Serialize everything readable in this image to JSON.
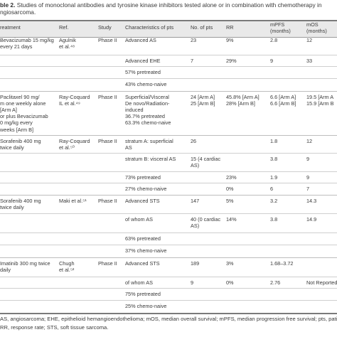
{
  "caption": {
    "label": "ble 2.",
    "text_line1": "Studies of monoclonal antibodies and tyrosine kinase inhibitors tested alone or in combination with chemotherapy in",
    "text_line2": "ngiosarcoma."
  },
  "columns": [
    "reatment",
    "Ref.",
    "Study",
    "Characteristics of pts",
    "No. of pts",
    "RR",
    "mPFS\n(months)",
    "mOS\n(months)"
  ],
  "rows": [
    {
      "treatment": "Bevacizumab 15 mg/kg\nevery 21 days",
      "ref": "Agulnik\net al.⁴⁸",
      "study": "Phase II",
      "characteristics": "Advanced AS",
      "n": "23",
      "rr": "9%",
      "mpfs": "2.8",
      "mos": "12"
    },
    {
      "treatment": "",
      "ref": "",
      "study": "",
      "characteristics": "Advanced EHE",
      "n": "7",
      "rr": "29%",
      "mpfs": "9",
      "mos": "33"
    },
    {
      "treatment": "",
      "ref": "",
      "study": "",
      "characteristics": "57% pretreated",
      "n": "",
      "rr": "",
      "mpfs": "",
      "mos": ""
    },
    {
      "treatment": "",
      "ref": "",
      "study": "",
      "characteristics": "43% chemo-naive",
      "n": "",
      "rr": "",
      "mpfs": "",
      "mos": ""
    },
    {
      "treatment": "Paclitaxel 90 mg/\nm one weekly alone\n[Arm A]\nor plus Bevacizumab\n0 mg/kg every\nweeks [Arm B]",
      "ref": "Ray-Coquard\nIL et al.⁴⁹",
      "study": "Phase II",
      "characteristics": "Superficial/Visceral\nDe novo/Radiation-\ninduced\n36.7% pretreated\n63.3% chemo-naive",
      "n": "24 [Arm A]\n25 [Arm B]",
      "rr": "45.8% [Arm A]\n28% [Arm B]",
      "mpfs": "6.6 [Arm A]\n6.6 [Arm B]",
      "mos": "19.5 [Arm A\n15.9 [Arm B"
    },
    {
      "treatment": "Sorafenib 400 mg\ntwice daily",
      "ref": "Ray-Coquard\net al.⁵⁰",
      "study": "Phase II",
      "characteristics": "stratum A: superficial\nAS",
      "n": "26",
      "rr": "",
      "mpfs": "1.8",
      "mos": "12"
    },
    {
      "treatment": "",
      "ref": "",
      "study": "",
      "characteristics": "stratum B: visceral AS",
      "n": "15 (4 cardiac\nAS)",
      "rr": "",
      "mpfs": "3.8",
      "mos": "9"
    },
    {
      "treatment": "",
      "ref": "",
      "study": "",
      "characteristics": "73% pretreated",
      "n": "",
      "rr": "23%",
      "mpfs": "1.9",
      "mos": "9"
    },
    {
      "treatment": "",
      "ref": "",
      "study": "",
      "characteristics": "27% chemo-naive",
      "n": "",
      "rr": "0%",
      "mpfs": "6",
      "mos": "7"
    },
    {
      "treatment": "Sorafenib 400 mg\ntwice daily",
      "ref": "Maki et al.⁵¹",
      "study": "Phase II",
      "characteristics": "Advanced STS",
      "n": "147",
      "rr": "5%",
      "mpfs": "3.2",
      "mos": "14.3"
    },
    {
      "treatment": "",
      "ref": "",
      "study": "",
      "characteristics": "of whom AS",
      "n": "40 (0 cardiac\nAS)",
      "rr": "14%",
      "mpfs": "3.8",
      "mos": "14.9"
    },
    {
      "treatment": "",
      "ref": "",
      "study": "",
      "characteristics": "63% pretreated",
      "n": "",
      "rr": "",
      "mpfs": "",
      "mos": ""
    },
    {
      "treatment": "",
      "ref": "",
      "study": "",
      "characteristics": "37% chemo-naive",
      "n": "",
      "rr": "",
      "mpfs": "",
      "mos": ""
    },
    {
      "treatment": "Imatinib 300 mg twice\ndaily",
      "ref": "Chugh\net al.⁵²",
      "study": "Phase II",
      "characteristics": "Advanced STS",
      "n": "189",
      "rr": "3%",
      "mpfs": "1.68–3.72",
      "mos": ""
    },
    {
      "treatment": "",
      "ref": "",
      "study": "",
      "characteristics": "of whom AS",
      "n": "9",
      "rr": "0%",
      "mpfs": "2.76",
      "mos": "Not Reported"
    },
    {
      "treatment": "",
      "ref": "",
      "study": "",
      "characteristics": "75% pretreated",
      "n": "",
      "rr": "",
      "mpfs": "",
      "mos": ""
    },
    {
      "treatment": "",
      "ref": "",
      "study": "",
      "characteristics": "25% chemo-naive",
      "n": "",
      "rr": "",
      "mpfs": "",
      "mos": ""
    }
  ],
  "footnotes": {
    "line1": "AS, angiosarcoma; EHE, epithelioid hemangioendothelioma; mOS, median overall survival; mPFS, median progression free survival; pts, patients,",
    "line2": "RR, response rate; STS, soft tissue sarcoma."
  }
}
